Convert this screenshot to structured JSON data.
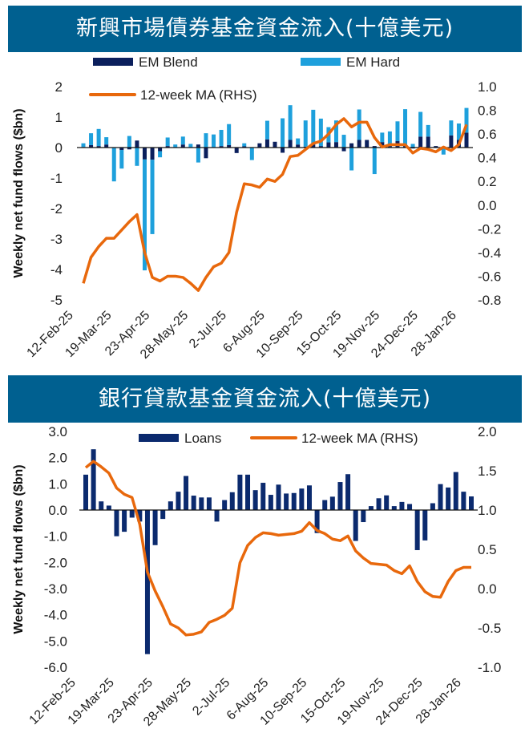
{
  "colors": {
    "title_bg": "#006090",
    "em_blend": "#0b1f5c",
    "em_hard": "#1ea0dc",
    "loans": "#0b2a6e",
    "ma": "#e8680c"
  },
  "chart_data": [
    {
      "type": "bar",
      "title": "新興市場債券基金資金流入(十億美元)",
      "ylabel": "Weekly net fund flows ($bn)",
      "ylim": [
        -5,
        2
      ],
      "yticks": [
        "2",
        "1",
        "0",
        "-1",
        "-2",
        "-3",
        "-4",
        "-5"
      ],
      "y2lim": [
        -0.8,
        1.0
      ],
      "y2ticks": [
        "1.0",
        "0.8",
        "0.6",
        "0.4",
        "0.2",
        "0.0",
        "-0.2",
        "-0.4",
        "-0.6",
        "-0.8"
      ],
      "xtick_labels": [
        "12-Feb-25",
        "19-Mar-25",
        "23-Apr-25",
        "28-May-25",
        "2-Jul-25",
        "6-Aug-25",
        "10-Sep-25",
        "15-Oct-25",
        "19-Nov-25",
        "24-Dec-25",
        "28-Jan-26"
      ],
      "stacked": true,
      "legend": "top",
      "series": [
        {
          "name": "EM Blend",
          "type": "bar",
          "values": [
            0.02,
            0.08,
            0.05,
            0.1,
            -0.02,
            -0.08,
            -0.06,
            0.23,
            -0.39,
            -0.4,
            -0.12,
            0.05,
            0,
            0.1,
            0,
            0.1,
            -0.35,
            0,
            0.05,
            0.08,
            -0.18,
            0.04,
            0,
            0.14,
            0.27,
            0.19,
            -0.17,
            0.25,
            0.1,
            0.03,
            0.1,
            0.05,
            0.17,
            0.18,
            -0.12,
            0.14,
            0.25,
            0.25,
            0.05,
            0.18,
            0.05,
            0.21,
            0.05,
            -0.03,
            0.36,
            0.36,
            0.05,
            0,
            0.4,
            0.25,
            0.49
          ]
        },
        {
          "name": "EM Hard",
          "type": "bar",
          "values": [
            0.12,
            0.39,
            0.56,
            0.24,
            -1.09,
            -0.61,
            0.38,
            -0.6,
            -3.64,
            -2.44,
            -0.2,
            0.28,
            0.1,
            0.26,
            0.12,
            -0.49,
            0.47,
            0.43,
            0.53,
            0.69,
            0,
            0.1,
            -0.41,
            0,
            0.61,
            0,
            0.96,
            1.14,
            0.2,
            0.86,
            1.14,
            0.9,
            0.5,
            0.71,
            0.42,
            -0.75,
            1.0,
            0,
            -0.87,
            0.31,
            0.48,
            0.65,
            1.21,
            0.12,
            0.81,
            0.38,
            0,
            -0.23,
            0.49,
            0.54,
            0.81
          ]
        },
        {
          "name": "12-week MA (RHS)",
          "type": "line",
          "axis": "right",
          "values": [
            -0.66,
            -0.44,
            -0.35,
            -0.28,
            -0.28,
            -0.21,
            -0.14,
            -0.08,
            -0.4,
            -0.61,
            -0.64,
            -0.6,
            -0.6,
            -0.61,
            -0.66,
            -0.72,
            -0.61,
            -0.52,
            -0.49,
            -0.4,
            -0.06,
            0.18,
            0.17,
            0.15,
            0.22,
            0.2,
            0.26,
            0.41,
            0.42,
            0.47,
            0.52,
            0.54,
            0.6,
            0.68,
            0.73,
            0.66,
            0.7,
            0.7,
            0.57,
            0.49,
            0.51,
            0.51,
            0.51,
            0.44,
            0.48,
            0.47,
            0.45,
            0.49,
            0.46,
            0.51,
            0.68
          ]
        }
      ]
    },
    {
      "type": "bar",
      "title": "銀行貸款基金資金流入(十億美元)",
      "ylabel": "Weekly net fund flows ($bn)",
      "ylim": [
        -6,
        3
      ],
      "yticks": [
        "3.0",
        "2.0",
        "1.0",
        "0.0",
        "-1.0",
        "-2.0",
        "-3.0",
        "-4.0",
        "-5.0",
        "-6.0"
      ],
      "y2lim": [
        -1,
        2
      ],
      "y2ticks": [
        "2.0",
        "1.5",
        "1.0",
        "0.5",
        "0.0",
        "-0.5",
        "-1.0"
      ],
      "xtick_labels": [
        "12-Feb-25",
        "19-Mar-25",
        "23-Apr-25",
        "28-May-25",
        "2-Jul-25",
        "6-Aug-25",
        "10-Sep-25",
        "15-Oct-25",
        "19-Nov-25",
        "24-Dec-25",
        "28-Jan-26"
      ],
      "legend": "top",
      "series": [
        {
          "name": "Loans",
          "type": "bar",
          "values": [
            1.35,
            2.32,
            0.33,
            0.17,
            -1.0,
            -0.83,
            -0.29,
            -0.44,
            -5.5,
            -1.34,
            -0.34,
            0.33,
            0.7,
            1.3,
            0.55,
            0.48,
            0.48,
            -0.44,
            0.38,
            0.68,
            1.35,
            1.35,
            0.76,
            1.04,
            0.58,
            0.97,
            0.63,
            0.65,
            0.82,
            0.94,
            -0.88,
            0.38,
            0.51,
            1.07,
            1.37,
            -1.18,
            -0.46,
            0.15,
            0.45,
            0.56,
            0.15,
            0.31,
            0.23,
            -1.53,
            -1.16,
            0.26,
            0.99,
            0.86,
            1.45,
            0.7,
            0.52
          ]
        },
        {
          "name": "12-week MA (RHS)",
          "type": "line",
          "axis": "right",
          "values": [
            1.54,
            1.62,
            1.55,
            1.47,
            1.28,
            1.2,
            1.16,
            0.82,
            0.21,
            -0.03,
            -0.23,
            -0.45,
            -0.5,
            -0.59,
            -0.58,
            -0.55,
            -0.43,
            -0.39,
            -0.34,
            -0.25,
            0.33,
            0.55,
            0.65,
            0.71,
            0.7,
            0.68,
            0.69,
            0.7,
            0.73,
            0.84,
            0.74,
            0.7,
            0.63,
            0.61,
            0.67,
            0.48,
            0.39,
            0.32,
            0.31,
            0.3,
            0.23,
            0.19,
            0.29,
            0.09,
            -0.04,
            -0.1,
            -0.11,
            0.09,
            0.23,
            0.27,
            0.27
          ]
        }
      ]
    }
  ]
}
